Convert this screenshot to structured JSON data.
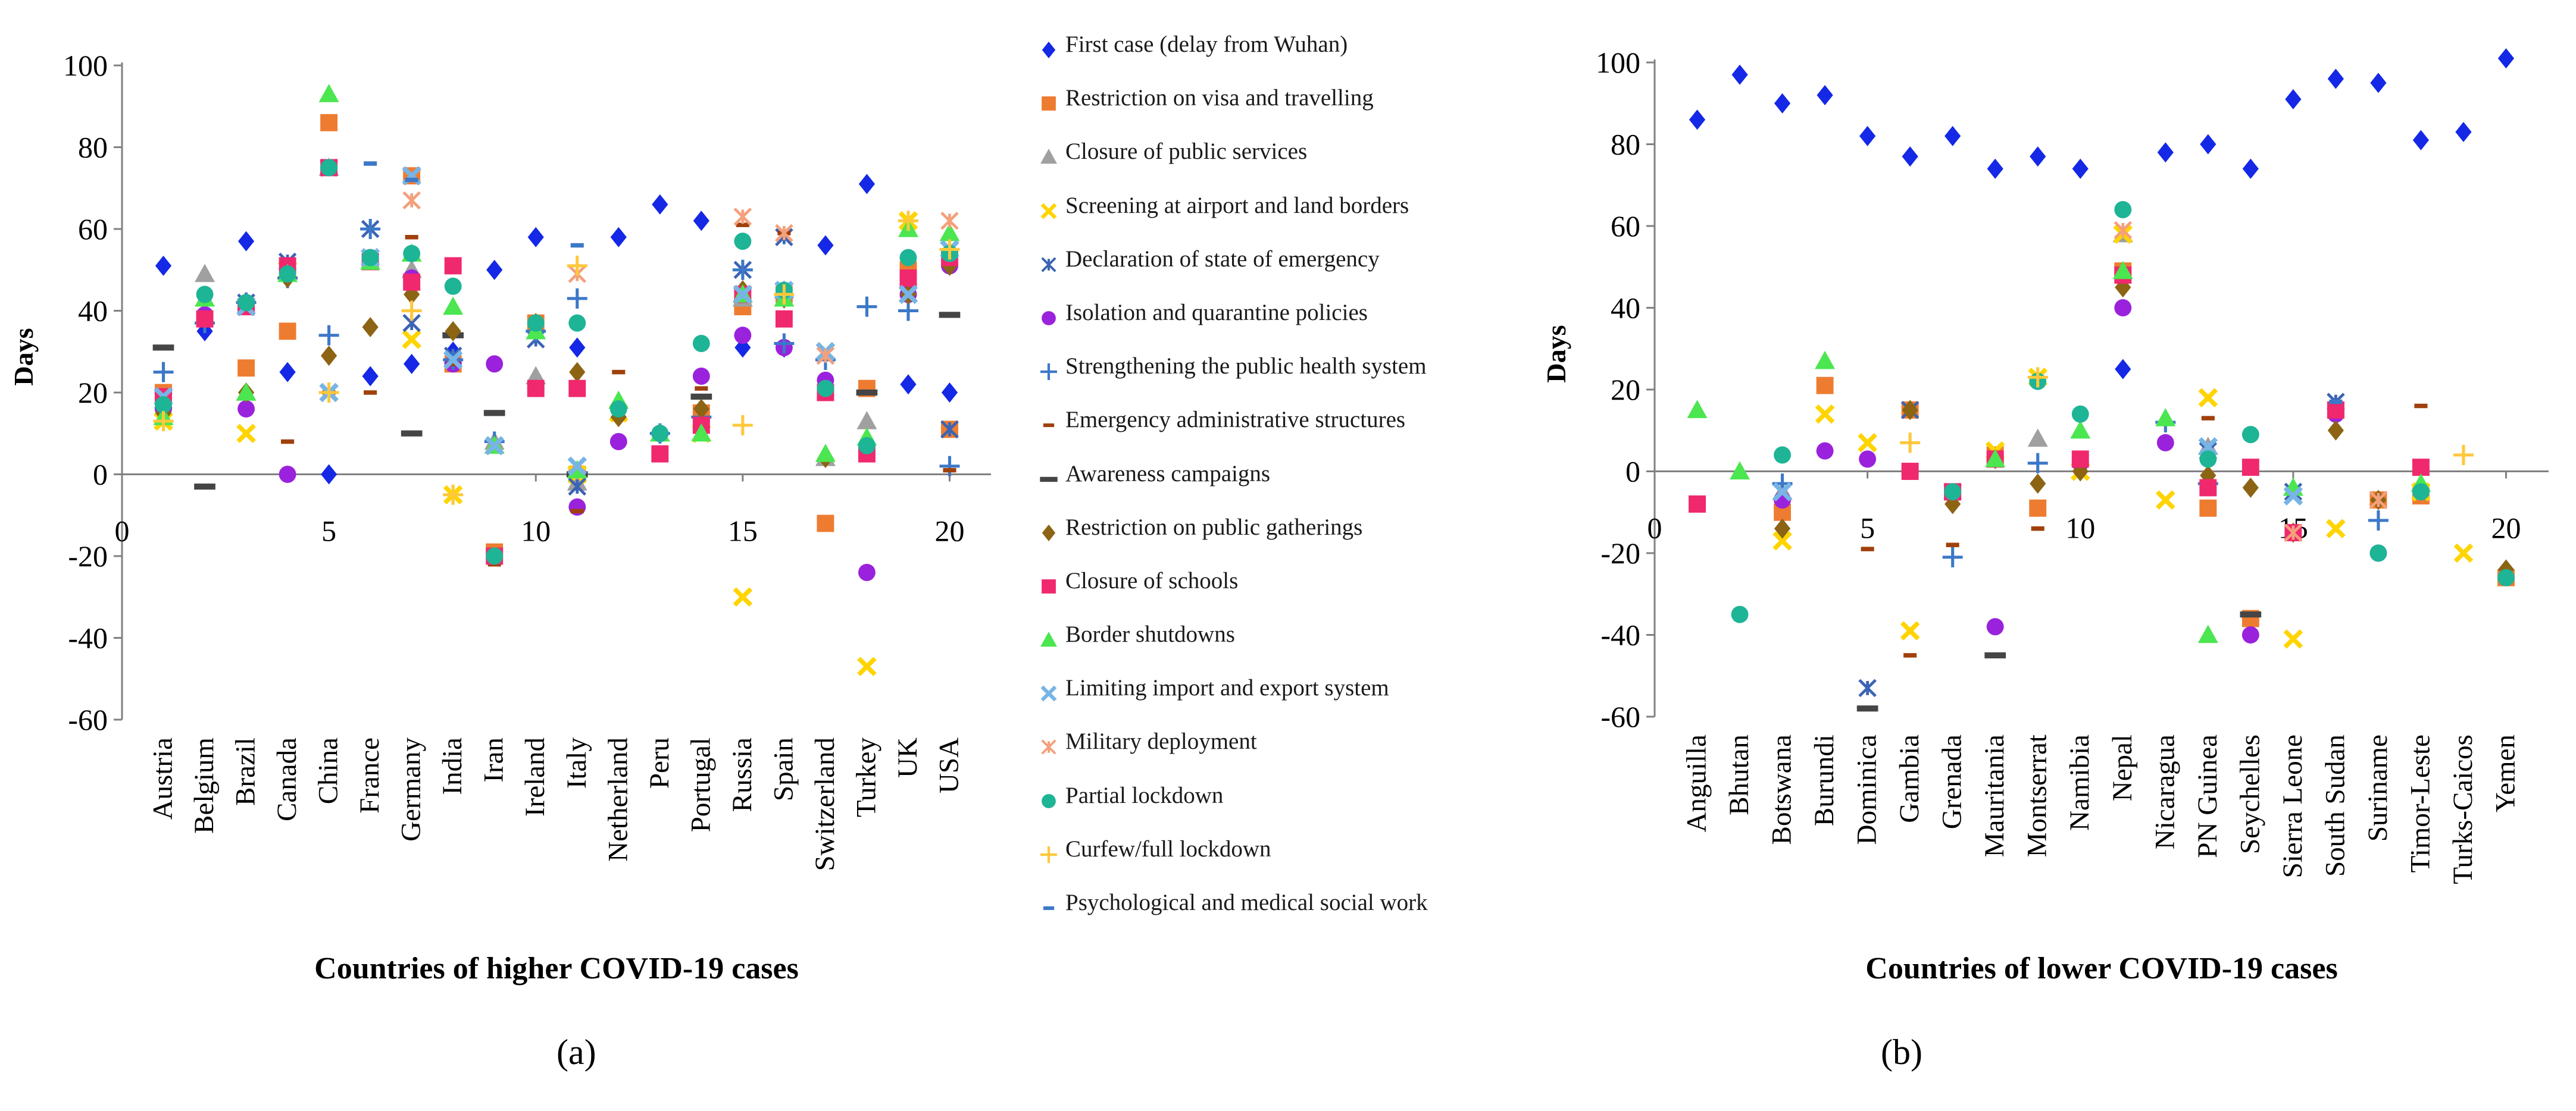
{
  "series_styles": [
    {
      "name": "First case (delay from Wuhan)",
      "marker": "diamond",
      "color": "#1428E6"
    },
    {
      "name": "Restriction on visa and travelling",
      "marker": "square",
      "color": "#EE7C30"
    },
    {
      "name": "Closure of public services",
      "marker": "triangle",
      "color": "#A0A0A0"
    },
    {
      "name": "Screening at airport and land borders",
      "marker": "xmark",
      "color": "#FFD400"
    },
    {
      "name": "Declaration of state of emergency",
      "marker": "xstar",
      "color": "#3B64B4"
    },
    {
      "name": "Isolation and quarantine policies",
      "marker": "circle",
      "color": "#9A22DC"
    },
    {
      "name": "Strengthening the public health system",
      "marker": "plus",
      "color": "#3C78C8"
    },
    {
      "name": "Emergency administrative structures",
      "marker": "dash",
      "color": "#A0400C"
    },
    {
      "name": "Awareness campaigns",
      "marker": "bar",
      "color": "#454545"
    },
    {
      "name": "Restriction on public gatherings",
      "marker": "diamond",
      "color": "#8C6414"
    },
    {
      "name": "Closure of schools",
      "marker": "square",
      "color": "#F0286E"
    },
    {
      "name": "Border shutdowns",
      "marker": "triangle",
      "color": "#4BE650"
    },
    {
      "name": "Limiting import and export system",
      "marker": "xmark",
      "color": "#78B4E6"
    },
    {
      "name": "Military deployment",
      "marker": "xstar",
      "color": "#F4A07C"
    },
    {
      "name": "Partial lockdown",
      "marker": "circle",
      "color": "#1EB496"
    },
    {
      "name": "Curfew/full lockdown",
      "marker": "plus",
      "color": "#FFC83C"
    },
    {
      "name": "Psychological and medical social work",
      "marker": "dash",
      "color": "#3C78C8"
    }
  ],
  "chart_data": [
    {
      "type": "scatter",
      "panel_label": "(a)",
      "xlabel": "Countries of higher COVID-19 cases",
      "ylabel": "Days",
      "xlim": [
        0,
        21
      ],
      "ylim": [
        -60,
        100
      ],
      "xticks": [
        0,
        5,
        10,
        15,
        20
      ],
      "yticks": [
        -60,
        -40,
        -20,
        0,
        20,
        40,
        60,
        80,
        100
      ],
      "categories": [
        "Austria",
        "Belgium",
        "Brazil",
        "Canada",
        "China",
        "France",
        "Germany",
        "India",
        "Iran",
        "Ireland",
        "Italy",
        "Netherland",
        "Peru",
        "Portugal",
        "Russia",
        "Spain",
        "Switzerland",
        "Turkey",
        "UK",
        "USA"
      ],
      "series": [
        {
          "name": "First case (delay from Wuhan)",
          "values": [
            51,
            35,
            57,
            25,
            0,
            24,
            27,
            30,
            50,
            58,
            31,
            58,
            66,
            62,
            31,
            31,
            56,
            71,
            22,
            20
          ]
        },
        {
          "name": "Restriction on visa and travelling",
          "values": [
            20,
            null,
            26,
            35,
            86,
            null,
            73,
            27,
            -19,
            37,
            0,
            null,
            null,
            15,
            41,
            44,
            -12,
            21,
            50,
            11
          ]
        },
        {
          "name": "Closure of public services",
          "values": [
            null,
            49,
            20,
            null,
            75,
            null,
            50,
            null,
            8,
            24,
            -2,
            null,
            null,
            null,
            43,
            45,
            4,
            13,
            null,
            null
          ]
        },
        {
          "name": "Screening at airport and land borders",
          "values": [
            13,
            null,
            10,
            50,
            20,
            null,
            33,
            -5,
            null,
            null,
            0,
            15,
            null,
            10,
            -30,
            null,
            30,
            -47,
            62,
            55
          ]
        },
        {
          "name": "Declaration of state of emergency",
          "values": [
            18,
            null,
            42,
            52,
            75,
            60,
            37,
            29,
            null,
            33,
            -3,
            null,
            null,
            null,
            50,
            58,
            29,
            null,
            null,
            11
          ]
        },
        {
          "name": "Isolation and quarantine policies",
          "values": [
            16,
            39,
            16,
            0,
            75,
            53,
            48,
            27,
            27,
            21,
            -8,
            8,
            10,
            24,
            34,
            31,
            23,
            -24,
            44,
            51
          ]
        },
        {
          "name": "Strengthening the public health system",
          "values": [
            25,
            37,
            42,
            48,
            34,
            60,
            null,
            28,
            8,
            35,
            43,
            null,
            10,
            14,
            50,
            32,
            28,
            41,
            40,
            2
          ]
        },
        {
          "name": "Emergency administrative structures",
          "values": [
            null,
            null,
            null,
            8,
            20,
            20,
            58,
            27,
            -22,
            null,
            -9,
            25,
            null,
            21,
            61,
            59,
            null,
            null,
            53,
            1
          ]
        },
        {
          "name": "Awareness campaigns",
          "values": [
            31,
            -3,
            null,
            null,
            null,
            null,
            10,
            34,
            15,
            null,
            0,
            null,
            null,
            19,
            null,
            null,
            null,
            20,
            null,
            39
          ]
        },
        {
          "name": "Restriction on public gatherings",
          "values": [
            15,
            null,
            20,
            48,
            29,
            36,
            44,
            35,
            null,
            37,
            25,
            14,
            null,
            16,
            45,
            43,
            4,
            null,
            44,
            51
          ]
        },
        {
          "name": "Closure of schools",
          "values": [
            19,
            38,
            41,
            51,
            75,
            52,
            47,
            51,
            -20,
            21,
            21,
            null,
            5,
            12,
            44,
            38,
            20,
            5,
            48,
            53
          ]
        },
        {
          "name": "Border shutdowns",
          "values": [
            14,
            43,
            20,
            49,
            93,
            52,
            54,
            41,
            7,
            35,
            1,
            18,
            10,
            10,
            44,
            43,
            5,
            9,
            60,
            59
          ]
        },
        {
          "name": "Limiting import and export system",
          "values": [
            19,
            null,
            41,
            null,
            20,
            53,
            73,
            28,
            7,
            null,
            2,
            null,
            null,
            null,
            44,
            45,
            30,
            null,
            44,
            55
          ]
        },
        {
          "name": "Military deployment",
          "values": [
            null,
            null,
            null,
            null,
            null,
            null,
            67,
            null,
            null,
            null,
            49,
            null,
            null,
            null,
            63,
            59,
            29,
            null,
            null,
            62
          ]
        },
        {
          "name": "Partial lockdown",
          "values": [
            17,
            44,
            42,
            49,
            75,
            53,
            54,
            46,
            -20,
            37,
            37,
            16,
            10,
            32,
            57,
            45,
            21,
            7,
            53,
            54
          ]
        },
        {
          "name": "Curfew/full lockdown",
          "values": [
            13,
            null,
            null,
            null,
            20,
            null,
            40,
            -5,
            null,
            null,
            51,
            null,
            null,
            null,
            12,
            44,
            null,
            null,
            62,
            55
          ]
        },
        {
          "name": "Psychological and medical social work",
          "values": [
            null,
            null,
            null,
            null,
            null,
            76,
            72,
            null,
            null,
            null,
            56,
            null,
            null,
            null,
            null,
            null,
            null,
            null,
            null,
            null
          ]
        }
      ]
    },
    {
      "type": "scatter",
      "panel_label": "(b)",
      "xlabel": "Countries of lower COVID-19 cases",
      "ylabel": "Days",
      "xlim": [
        0,
        21
      ],
      "ylim": [
        -60,
        100
      ],
      "xticks": [
        0,
        5,
        10,
        15,
        20
      ],
      "yticks": [
        -60,
        -40,
        -20,
        0,
        20,
        40,
        60,
        80,
        100
      ],
      "categories": [
        "Anguilla",
        "Bhutan",
        "Botswana",
        "Burundi",
        "Dominica",
        "Gambia",
        "Grenada",
        "Mauritania",
        "Montserrat",
        "Namibia",
        "Nepal",
        "Nicaragua",
        "PN Guinea",
        "Seychelles",
        "Sierra Leone",
        "South Sudan",
        "Suriname",
        "Timor-Leste",
        "Turks-Caicos",
        "Yemen"
      ],
      "series": [
        {
          "name": "First case (delay from Wuhan)",
          "values": [
            86,
            97,
            90,
            92,
            82,
            77,
            82,
            74,
            77,
            74,
            25,
            78,
            80,
            74,
            91,
            96,
            95,
            81,
            83,
            101
          ]
        },
        {
          "name": "Restriction on visa and travelling",
          "values": [
            -8,
            null,
            -10,
            21,
            null,
            15,
            -5,
            4,
            -9,
            null,
            49,
            null,
            -9,
            -36,
            null,
            15,
            -7,
            -6,
            null,
            -26
          ]
        },
        {
          "name": "Closure of public services",
          "values": [
            null,
            null,
            -5,
            null,
            null,
            null,
            null,
            null,
            8,
            null,
            58,
            null,
            6,
            null,
            null,
            null,
            null,
            null,
            null,
            null
          ]
        },
        {
          "name": "Screening at airport and land borders",
          "values": [
            null,
            null,
            -17,
            14,
            7,
            -39,
            null,
            5,
            23,
            0,
            58,
            -7,
            18,
            null,
            -41,
            -14,
            null,
            -5,
            -20,
            null
          ]
        },
        {
          "name": "Declaration of state of emergency",
          "values": [
            null,
            null,
            -5,
            null,
            -53,
            15,
            -5,
            null,
            null,
            null,
            null,
            null,
            5,
            null,
            -5,
            17,
            null,
            null,
            null,
            null
          ]
        },
        {
          "name": "Isolation and quarantine policies",
          "values": [
            null,
            null,
            -7,
            5,
            3,
            0,
            -5,
            -38,
            null,
            2,
            40,
            7,
            -4,
            -40,
            null,
            14,
            -20,
            null,
            null,
            null
          ]
        },
        {
          "name": "Strengthening the public health system",
          "values": [
            null,
            null,
            -3,
            null,
            null,
            null,
            -21,
            null,
            2,
            null,
            null,
            12,
            -3,
            null,
            null,
            null,
            -12,
            null,
            null,
            null
          ]
        },
        {
          "name": "Emergency administrative structures",
          "values": [
            null,
            null,
            null,
            null,
            -19,
            -45,
            -18,
            null,
            -14,
            null,
            null,
            null,
            13,
            null,
            null,
            null,
            null,
            16,
            null,
            null
          ]
        },
        {
          "name": "Awareness campaigns",
          "values": [
            null,
            null,
            null,
            null,
            -58,
            null,
            null,
            -45,
            null,
            null,
            null,
            null,
            null,
            -35,
            null,
            null,
            null,
            null,
            null,
            null
          ]
        },
        {
          "name": "Restriction on public gatherings",
          "values": [
            null,
            null,
            -14,
            null,
            null,
            15,
            -8,
            3,
            -3,
            0,
            45,
            null,
            -1,
            -4,
            -15,
            10,
            -7,
            null,
            null,
            -24
          ]
        },
        {
          "name": "Closure of schools",
          "values": [
            -8,
            null,
            null,
            null,
            null,
            0,
            -5,
            3,
            null,
            3,
            48,
            null,
            -4,
            1,
            -15,
            15,
            null,
            1,
            null,
            null
          ]
        },
        {
          "name": "Border shutdowns",
          "values": [
            15,
            0,
            null,
            27,
            null,
            null,
            null,
            3,
            null,
            10,
            49,
            13,
            -40,
            null,
            -4,
            null,
            null,
            -3,
            null,
            null
          ]
        },
        {
          "name": "Limiting import and export system",
          "values": [
            null,
            null,
            -5,
            null,
            null,
            null,
            null,
            null,
            null,
            null,
            null,
            null,
            6,
            null,
            -6,
            null,
            null,
            null,
            null,
            null
          ]
        },
        {
          "name": "Military deployment",
          "values": [
            null,
            null,
            null,
            null,
            null,
            null,
            null,
            null,
            null,
            null,
            59,
            null,
            null,
            null,
            -15,
            null,
            -7,
            null,
            null,
            null
          ]
        },
        {
          "name": "Partial lockdown",
          "values": [
            null,
            -35,
            4,
            null,
            null,
            null,
            -5,
            null,
            22,
            14,
            64,
            null,
            3,
            9,
            null,
            null,
            -20,
            -5,
            null,
            -26
          ]
        },
        {
          "name": "Curfew/full lockdown",
          "values": [
            null,
            null,
            null,
            null,
            null,
            7,
            null,
            null,
            23,
            null,
            null,
            null,
            null,
            null,
            null,
            null,
            null,
            null,
            4,
            null
          ]
        },
        {
          "name": "Psychological and medical social work",
          "values": [
            null,
            null,
            null,
            null,
            null,
            null,
            null,
            null,
            null,
            null,
            null,
            null,
            null,
            null,
            null,
            17,
            null,
            null,
            null,
            null
          ]
        }
      ]
    }
  ]
}
